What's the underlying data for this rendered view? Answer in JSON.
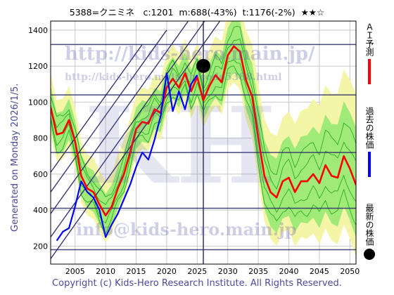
{
  "header": {
    "title": "5388=クニミネ　c:1201  m:688(-43%)  t:1176(-2%)  ★★☆"
  },
  "side_label": "Generated on Monday 2026/1/5.",
  "copyright": "Copyright (c) Kids-Hero Research Institute. All Rights Reserved.",
  "legend": [
    {
      "label": "ＡＩ予測",
      "color": "#ff0000",
      "kind": "line"
    },
    {
      "label": "過去の株価",
      "color": "#0000ff",
      "kind": "line"
    },
    {
      "label": "最新の株価",
      "color": "#000000",
      "kind": "dot"
    }
  ],
  "watermarks": {
    "url_main": "http://kids-hero.main.jp/",
    "url_code": "http://kids-hero.main.jp/code5388.html",
    "email": "info@kids-hero.main.jp",
    "logo": "KH"
  },
  "colors": {
    "prediction": "#ff0000",
    "past_price": "#0000ff",
    "band_light": "#f5f5a8",
    "band_green": "#90e870",
    "band_line": "#1aa81a",
    "channel": "#2a2a6a",
    "hline": "#2a2a6a",
    "grid": "#c8c8c8"
  },
  "chart_data": {
    "type": "line",
    "xlim": [
      2001,
      2051
    ],
    "ylim": [
      100,
      1450
    ],
    "x_ticks": [
      2005,
      2010,
      2015,
      2020,
      2025,
      2030,
      2035,
      2040,
      2045,
      2050
    ],
    "y_ticks": [
      200,
      400,
      600,
      800,
      1000,
      1200,
      1400
    ],
    "grid": true,
    "horizontal_lines": [
      180,
      410,
      720,
      1040,
      1320
    ],
    "current_date_line": 2026.0,
    "latest_price": {
      "x": 2026.0,
      "y": 1201
    },
    "channel_lines": [
      {
        "x1": 2001,
        "y1": 130,
        "x2": 2035,
        "y2": 1750
      },
      {
        "x1": 2001,
        "y1": 250,
        "x2": 2030,
        "y2": 1630
      },
      {
        "x1": 2001,
        "y1": 380,
        "x2": 2025,
        "y2": 1520
      },
      {
        "x1": 2001,
        "y1": 500,
        "x2": 2020,
        "y2": 1400
      },
      {
        "x1": 2001,
        "y1": 610,
        "x2": 2016,
        "y2": 1320
      }
    ],
    "series": [
      {
        "name": "ＡＩ予測",
        "x": [
          2001,
          2002,
          2003,
          2004,
          2005,
          2006,
          2007,
          2008,
          2009,
          2010,
          2011,
          2012,
          2013,
          2014,
          2015,
          2016,
          2017,
          2018,
          2019,
          2020,
          2021,
          2022,
          2023,
          2024,
          2025,
          2026,
          2027,
          2028,
          2029,
          2030,
          2031,
          2032,
          2033,
          2034,
          2035,
          2036,
          2037,
          2038,
          2039,
          2040,
          2041,
          2042,
          2043,
          2044,
          2045,
          2046,
          2047,
          2048,
          2049,
          2050,
          2051
        ],
        "y": [
          970,
          820,
          830,
          900,
          780,
          590,
          520,
          500,
          430,
          370,
          420,
          520,
          600,
          720,
          850,
          890,
          880,
          960,
          940,
          1080,
          1130,
          1080,
          1160,
          1060,
          1140,
          1010,
          1090,
          1150,
          1110,
          1260,
          1310,
          1280,
          1120,
          1030,
          800,
          590,
          500,
          470,
          560,
          580,
          500,
          560,
          560,
          600,
          550,
          650,
          590,
          580,
          700,
          630,
          540
        ]
      },
      {
        "name": "過去の株価",
        "x": [
          2002,
          2003,
          2004,
          2005,
          2006,
          2007,
          2008,
          2009,
          2010,
          2011,
          2012,
          2013,
          2014,
          2015,
          2016,
          2017,
          2018,
          2019,
          2020,
          2021,
          2022,
          2023,
          2024,
          2025
        ],
        "y": [
          230,
          280,
          300,
          420,
          560,
          500,
          470,
          400,
          250,
          320,
          380,
          460,
          540,
          640,
          720,
          680,
          790,
          920,
          1160,
          950,
          1060,
          960,
          1100,
          1150
        ]
      }
    ]
  }
}
